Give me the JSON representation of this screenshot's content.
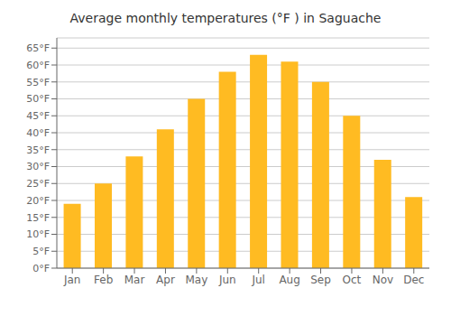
{
  "chart_data": {
    "type": "bar",
    "title": "Average monthly temperatures (°F ) in Saguache",
    "categories": [
      "Jan",
      "Feb",
      "Mar",
      "Apr",
      "May",
      "Jun",
      "Jul",
      "Aug",
      "Sep",
      "Oct",
      "Nov",
      "Dec"
    ],
    "values": [
      19,
      25,
      33,
      41,
      50,
      58,
      63,
      61,
      55,
      45,
      32,
      21
    ],
    "color": "#FFBB22",
    "ylim": [
      0,
      68
    ],
    "yticks": [
      {
        "value": 0,
        "label": "0°F"
      },
      {
        "value": 5,
        "label": "5°F"
      },
      {
        "value": 10,
        "label": "10°F"
      },
      {
        "value": 15,
        "label": "15°F"
      },
      {
        "value": 20,
        "label": "20°F"
      },
      {
        "value": 25,
        "label": "25°F"
      },
      {
        "value": 30,
        "label": "30°F"
      },
      {
        "value": 35,
        "label": "35°F"
      },
      {
        "value": 40,
        "label": "40°F"
      },
      {
        "value": 45,
        "label": "45°F"
      },
      {
        "value": 50,
        "label": "50°F"
      },
      {
        "value": 55,
        "label": "55°F"
      },
      {
        "value": 60,
        "label": "60°F"
      },
      {
        "value": 65,
        "label": "65°F"
      }
    ],
    "grid": true
  }
}
